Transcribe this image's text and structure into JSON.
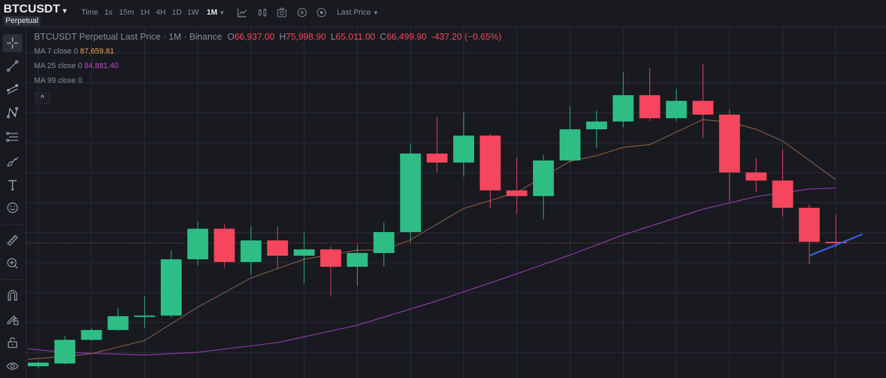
{
  "header": {
    "symbol": "BTCUSDT",
    "contract_type": "Perpetual",
    "timeframes": [
      "Time",
      "1s",
      "15m",
      "1H",
      "4H",
      "1D",
      "1W"
    ],
    "active_timeframe": "1M",
    "price_type": "Last Price",
    "icons": [
      "indicators-icon",
      "chart-type-icon",
      "camera-icon",
      "add-icon",
      "settings-circle-icon"
    ]
  },
  "legend": {
    "title": "BTCUSDT Perpetual Last Price · 1M · Binance",
    "o_label": "O",
    "o": "66,937.00",
    "h_label": "H",
    "h": "75,998.90",
    "l_label": "L",
    "l": "65,011.00",
    "c_label": "C",
    "c": "66,499.90",
    "change": "-437.20 (−0.65%)",
    "ma7_label": "MA 7 close 0",
    "ma7_value": "87,659.81",
    "ma25_label": "MA 25 close 0",
    "ma25_value": "84,881.40",
    "ma99_label": "MA 99 close 0",
    "collapse": "^"
  },
  "colors": {
    "up": "#2ebd85",
    "down": "#f6465d",
    "ma7": "#8a5a42",
    "ma25": "#8e3aa8",
    "trend": "#3b5bdb",
    "grid": "#2b2f36",
    "price_line": "#c0504d"
  },
  "chart_data": {
    "type": "candlestick",
    "price_grid_step": 10000,
    "current_price": 66499.9,
    "candles": [
      [
        25400,
        27000,
        24700,
        26600
      ],
      [
        26300,
        35600,
        26100,
        34200
      ],
      [
        34200,
        38200,
        33800,
        37500
      ],
      [
        37500,
        44700,
        37200,
        42100
      ],
      [
        42100,
        48800,
        38200,
        42300
      ],
      [
        42300,
        64200,
        41600,
        61100
      ],
      [
        61100,
        73700,
        59000,
        71300
      ],
      [
        71300,
        72700,
        58400,
        60200
      ],
      [
        60200,
        72000,
        56000,
        67400
      ],
      [
        67400,
        72000,
        57900,
        62300
      ],
      [
        62300,
        70000,
        53200,
        64400
      ],
      [
        64400,
        65300,
        48600,
        58600
      ],
      [
        58600,
        66000,
        52300,
        63200
      ],
      [
        63200,
        73400,
        58800,
        70200
      ],
      [
        70200,
        99600,
        66700,
        96400
      ],
      [
        96400,
        108700,
        90100,
        93400
      ],
      [
        93400,
        110100,
        88700,
        102400
      ],
      [
        102400,
        102900,
        78100,
        84100
      ],
      [
        84100,
        95000,
        76400,
        82200
      ],
      [
        82200,
        95900,
        74400,
        94100
      ],
      [
        94100,
        112200,
        93400,
        104500
      ],
      [
        104500,
        110800,
        98300,
        107100
      ],
      [
        107100,
        123500,
        105200,
        115900
      ],
      [
        115900,
        124900,
        107300,
        108200
      ],
      [
        108200,
        118000,
        107300,
        114000
      ],
      [
        114000,
        126300,
        101500,
        109400
      ],
      [
        109400,
        111200,
        80400,
        90100
      ],
      [
        90100,
        94800,
        83600,
        87400
      ],
      [
        87400,
        97800,
        75300,
        78300
      ],
      [
        78300,
        79300,
        59500,
        66937
      ],
      [
        66937,
        75998.9,
        65011,
        66499.9
      ]
    ],
    "ma7": [
      [
        -0.4,
        27729
      ],
      [
        1,
        28657
      ],
      [
        2,
        29585
      ],
      [
        4,
        33993
      ],
      [
        6,
        45129
      ],
      [
        8,
        54873
      ],
      [
        10,
        61137
      ],
      [
        12,
        64153
      ],
      [
        13,
        64153
      ],
      [
        14,
        67633
      ],
      [
        16,
        78073
      ],
      [
        18,
        83409
      ],
      [
        20,
        93849
      ],
      [
        21,
        95705
      ],
      [
        22,
        98489
      ],
      [
        23,
        99417
      ],
      [
        25,
        107769
      ],
      [
        26,
        106841
      ],
      [
        27,
        104521
      ],
      [
        28,
        100577
      ],
      [
        30,
        87660
      ]
    ],
    "ma25": [
      [
        -0.4,
        31209
      ],
      [
        1,
        30049
      ],
      [
        4,
        29121
      ],
      [
        6,
        30049
      ],
      [
        9,
        33297
      ],
      [
        12,
        39097
      ],
      [
        15,
        47217
      ],
      [
        18,
        56265
      ],
      [
        20,
        62529
      ],
      [
        22,
        69257
      ],
      [
        25,
        77841
      ],
      [
        27,
        82017
      ],
      [
        29,
        84569
      ],
      [
        30,
        84881
      ]
    ],
    "trendline": [
      [
        29,
        62297
      ],
      [
        31,
        69489
      ]
    ]
  },
  "toolbar_left": [
    "crosshair",
    "trend-line",
    "parallel-channel",
    "pattern",
    "fib-retracement",
    "brush",
    "text",
    "emoji",
    "ruler",
    "zoom-in",
    "magnet",
    "lock-drawing",
    "unlock",
    "eye"
  ]
}
